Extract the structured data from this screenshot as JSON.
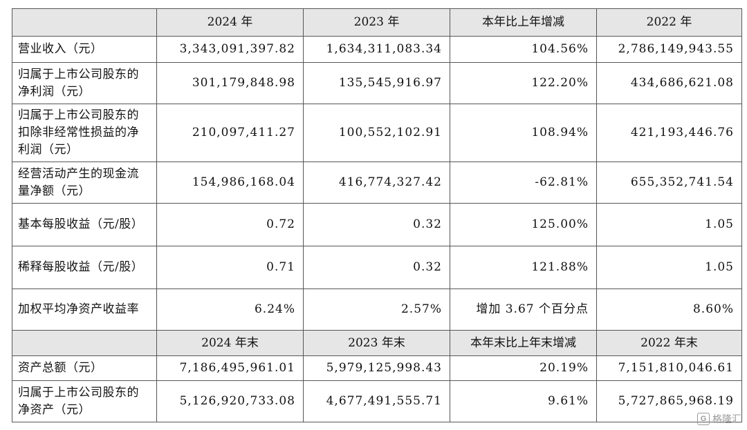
{
  "table": {
    "header_1": [
      "",
      "2024 年",
      "2023 年",
      "本年比上年增减",
      "2022 年"
    ],
    "rows_1": [
      {
        "label": "营业收入（元）",
        "values": [
          "3,343,091,397.82",
          "1,634,311,083.34",
          "104.56%",
          "2,786,149,943.55"
        ]
      },
      {
        "label": "归属于上市公司股东的净利润（元）",
        "values": [
          "301,179,848.98",
          "135,545,916.97",
          "122.20%",
          "434,686,621.08"
        ]
      },
      {
        "label": "归属于上市公司股东的扣除非经常性损益的净利润（元）",
        "values": [
          "210,097,411.27",
          "100,552,102.91",
          "108.94%",
          "421,193,446.76"
        ]
      },
      {
        "label": "经营活动产生的现金流量净额（元）",
        "values": [
          "154,986,168.04",
          "416,774,327.42",
          "-62.81%",
          "655,352,741.54"
        ]
      },
      {
        "label": "基本每股收益（元/股）",
        "values": [
          "0.72",
          "0.32",
          "125.00%",
          "1.05"
        ]
      },
      {
        "label": "稀释每股收益（元/股）",
        "values": [
          "0.71",
          "0.32",
          "121.88%",
          "1.05"
        ]
      },
      {
        "label": "加权平均净资产收益率",
        "values": [
          "6.24%",
          "2.57%",
          "增加 3.67 个百分点",
          "8.60%"
        ]
      }
    ],
    "header_2": [
      "",
      "2024 年末",
      "2023 年末",
      "本年末比上年末增减",
      "2022 年末"
    ],
    "rows_2": [
      {
        "label": "资产总额（元）",
        "values": [
          "7,186,495,961.01",
          "5,979,125,998.43",
          "20.19%",
          "7,151,810,046.61"
        ]
      },
      {
        "label": "归属于上市公司股东的净资产（元）",
        "values": [
          "5,126,920,733.08",
          "4,677,491,555.71",
          "9.61%",
          "5,727,865,968.19"
        ]
      }
    ]
  },
  "watermark": {
    "text": "格隆汇",
    "icon": "G"
  }
}
